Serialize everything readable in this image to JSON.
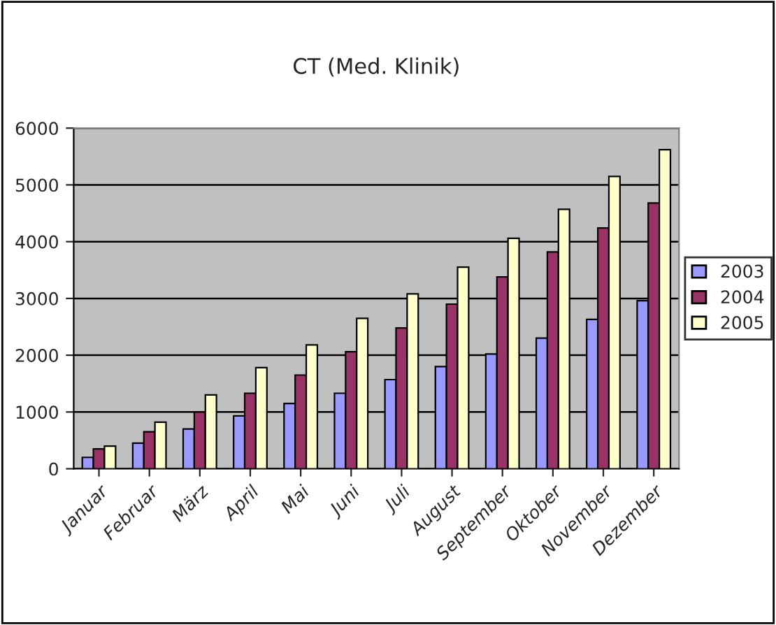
{
  "chart_data": {
    "type": "bar",
    "title": "CT (Med. Klinik)",
    "categories": [
      "Januar",
      "Februar",
      "März",
      "April",
      "Mai",
      "Juni",
      "Juli",
      "August",
      "September",
      "Oktober",
      "November",
      "Dezember"
    ],
    "series": [
      {
        "name": "2003",
        "color": "#9999ff",
        "values": [
          200,
          450,
          700,
          930,
          1150,
          1330,
          1570,
          1800,
          2020,
          2300,
          2630,
          2960
        ]
      },
      {
        "name": "2004",
        "color": "#993366",
        "values": [
          350,
          650,
          1000,
          1330,
          1650,
          2060,
          2480,
          2900,
          3380,
          3820,
          4240,
          4680
        ]
      },
      {
        "name": "2005",
        "color": "#ffffcc",
        "values": [
          400,
          820,
          1300,
          1780,
          2180,
          2650,
          3080,
          3550,
          4060,
          4570,
          5150,
          5620
        ]
      }
    ],
    "ylim": [
      0,
      6000
    ],
    "yticks": [
      0,
      1000,
      2000,
      3000,
      4000,
      5000,
      6000
    ],
    "grid": "y",
    "legend": "right"
  }
}
